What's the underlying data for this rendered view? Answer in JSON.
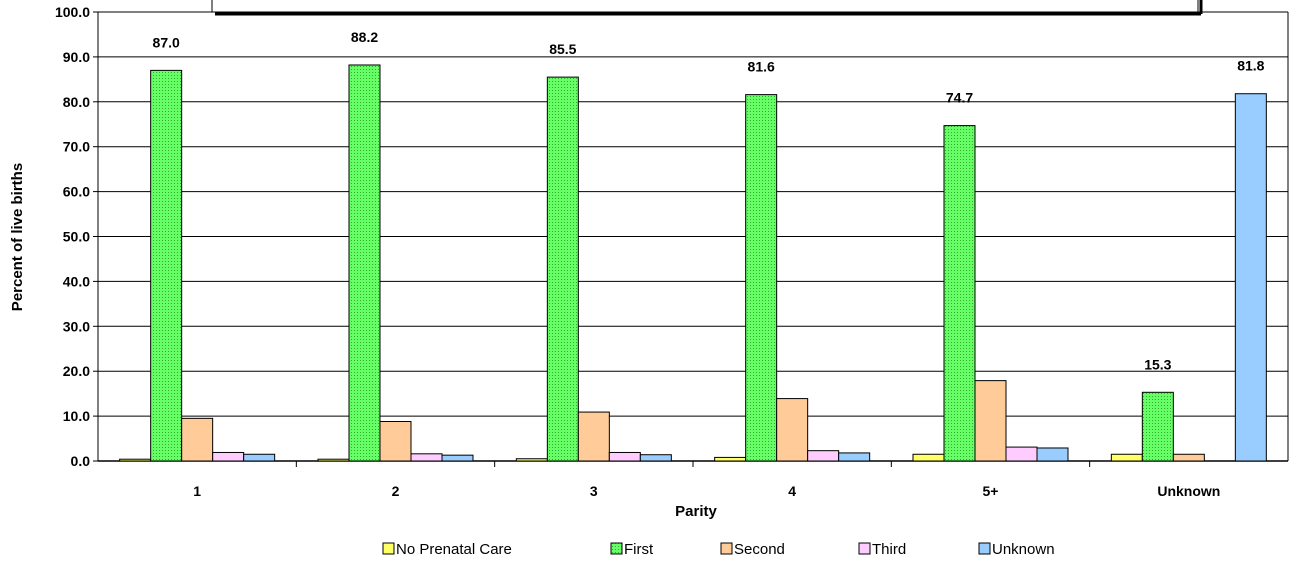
{
  "chart_data": {
    "type": "bar",
    "title": "",
    "xlabel": "Parity",
    "ylabel": "Percent of live births",
    "ylim": [
      0,
      100
    ],
    "ytick_step": 10,
    "ytick_labels": [
      "0.0",
      "10.0",
      "20.0",
      "30.0",
      "40.0",
      "50.0",
      "60.0",
      "70.0",
      "80.0",
      "90.0",
      "100.0"
    ],
    "grid": "horizontal",
    "legend_position": "bottom",
    "categories": [
      "1",
      "2",
      "3",
      "4",
      "5+",
      "Unknown"
    ],
    "series": [
      {
        "name": "No Prenatal Care",
        "color": "#ffff66",
        "values": [
          0.4,
          0.4,
          0.5,
          0.8,
          1.5,
          1.5
        ]
      },
      {
        "name": "First",
        "color": "#66ff66",
        "values": [
          87.0,
          88.2,
          85.5,
          81.6,
          74.7,
          15.3
        ]
      },
      {
        "name": "Second",
        "color": "#ffcc99",
        "values": [
          9.5,
          8.8,
          10.9,
          13.9,
          17.9,
          1.5
        ]
      },
      {
        "name": "Third",
        "color": "#ffccff",
        "values": [
          1.9,
          1.6,
          1.9,
          2.3,
          3.1,
          0.0
        ]
      },
      {
        "name": "Unknown",
        "color": "#99ccff",
        "values": [
          1.5,
          1.3,
          1.4,
          1.8,
          2.9,
          81.8
        ]
      }
    ],
    "data_labels": [
      {
        "category": "1",
        "series": "First",
        "text": "87.0"
      },
      {
        "category": "2",
        "series": "First",
        "text": "88.2"
      },
      {
        "category": "3",
        "series": "First",
        "text": "85.5"
      },
      {
        "category": "4",
        "series": "First",
        "text": "81.6"
      },
      {
        "category": "5+",
        "series": "First",
        "text": "74.7"
      },
      {
        "category": "Unknown",
        "series": "First",
        "text": "15.3"
      },
      {
        "category": "Unknown",
        "series": "Unknown",
        "text": "81.8"
      }
    ]
  }
}
